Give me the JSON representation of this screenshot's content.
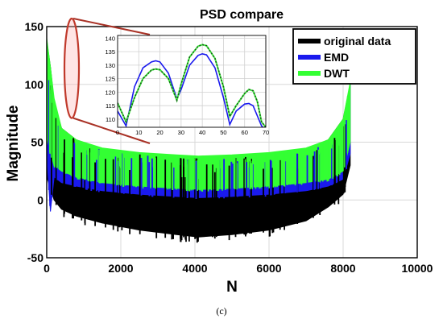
{
  "chart_data": {
    "type": "line",
    "title": "PSD compare",
    "xlabel": "N",
    "ylabel": "Magnitude",
    "xlim": [
      0,
      10000
    ],
    "ylim": [
      -50,
      150
    ],
    "x_ticks": [
      "0",
      "2000",
      "4000",
      "6000",
      "8000",
      "10000"
    ],
    "y_ticks": [
      "-50",
      "0",
      "50",
      "100",
      "150"
    ],
    "grid": true,
    "legend_position": "top-right",
    "series": [
      {
        "name": "original data",
        "color": "#000000",
        "x": [
          0,
          100,
          200,
          400,
          800,
          1500,
          2500,
          3500,
          4096,
          5000,
          6000,
          7000,
          7600,
          8000,
          8192
        ],
        "upper": [
          138,
          115,
          85,
          62,
          52,
          44,
          40,
          38,
          37,
          38,
          40,
          44,
          52,
          70,
          100
        ],
        "lower": [
          20,
          10,
          0,
          -8,
          -14,
          -20,
          -26,
          -30,
          -32,
          -30,
          -26,
          -18,
          -6,
          5,
          30
        ]
      },
      {
        "name": "EMD",
        "color": "#1a1aee",
        "x": [
          0,
          100,
          200,
          400,
          800,
          1500,
          2500,
          3500,
          4096,
          5000,
          6000,
          7000,
          7600,
          8000,
          8192
        ],
        "upper": [
          132,
          112,
          85,
          60,
          50,
          43,
          39,
          37,
          36,
          37,
          39,
          43,
          50,
          68,
          100
        ],
        "lower": [
          40,
          -10,
          20,
          15,
          12,
          8,
          5,
          3,
          2,
          3,
          5,
          8,
          12,
          18,
          40
        ]
      },
      {
        "name": "DWT",
        "color": "#33ff33",
        "x": [
          0,
          100,
          200,
          400,
          800,
          1500,
          2500,
          3500,
          4096,
          5000,
          6000,
          7000,
          7600,
          8000,
          8192
        ],
        "upper": [
          140,
          115,
          88,
          62,
          52,
          45,
          41,
          39,
          38,
          39,
          41,
          45,
          52,
          70,
          102
        ],
        "lower": [
          55,
          40,
          30,
          25,
          20,
          15,
          12,
          10,
          9,
          10,
          12,
          15,
          18,
          25,
          50
        ]
      }
    ],
    "inset": {
      "xlim": [
        0,
        70
      ],
      "ylim": [
        107,
        141
      ],
      "x_ticks": [
        "0",
        "10",
        "20",
        "30",
        "40",
        "50",
        "60",
        "70"
      ],
      "y_ticks": [
        "110",
        "115",
        "120",
        "125",
        "130",
        "135",
        "140"
      ],
      "grid": true,
      "series": [
        {
          "name": "EMD",
          "color": "#1a1aee",
          "x": [
            0,
            4,
            8,
            12,
            16,
            18,
            20,
            24,
            28,
            30,
            34,
            38,
            40,
            42,
            46,
            50,
            53,
            56,
            60,
            62,
            64,
            68,
            70
          ],
          "y": [
            113,
            107.5,
            122,
            129,
            131.2,
            131.6,
            131.2,
            127,
            117.5,
            121,
            130,
            133.6,
            134.2,
            133.8,
            129,
            118,
            108,
            113,
            115.6,
            115.8,
            115,
            107.5,
            106
          ]
        },
        {
          "name": "DWT",
          "color": "#1a5c1a",
          "x": [
            0,
            4,
            8,
            12,
            16,
            18,
            20,
            24,
            28,
            30,
            34,
            38,
            40,
            42,
            46,
            50,
            53,
            56,
            60,
            62,
            64,
            66,
            68,
            70
          ],
          "y": [
            116,
            109,
            118,
            125,
            128.2,
            128.6,
            128.3,
            125,
            117,
            123,
            133,
            137,
            137.6,
            137.2,
            132.5,
            122,
            111,
            115,
            119.5,
            121,
            120.5,
            116.5,
            109,
            107
          ]
        }
      ]
    },
    "zoom_highlight": {
      "x_range": [
        0,
        1000
      ],
      "y_range": [
        75,
        150
      ]
    },
    "caption": "(c)"
  }
}
